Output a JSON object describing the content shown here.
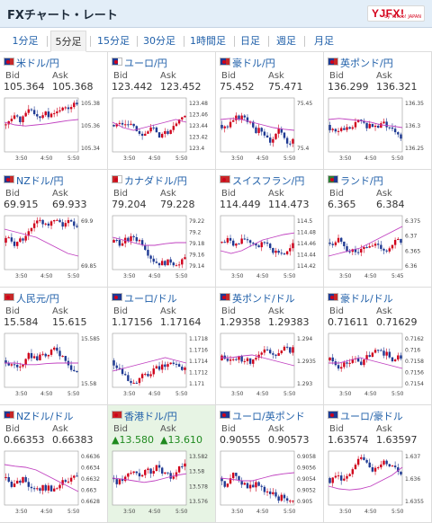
{
  "header": {
    "title": "FXチャート・レート",
    "logo_text": "YJFX!",
    "logo_sub": "by Yahoo! JAPAN"
  },
  "tabs": [
    {
      "label": "1分足",
      "active": false
    },
    {
      "label": "5分足",
      "active": true
    },
    {
      "label": "15分足",
      "active": false
    },
    {
      "label": "30分足",
      "active": false
    },
    {
      "label": "1時間足",
      "active": false
    },
    {
      "label": "日足",
      "active": false
    },
    {
      "label": "週足",
      "active": false
    },
    {
      "label": "月足",
      "active": false
    }
  ],
  "labels": {
    "bid": "Bid",
    "ask": "Ask"
  },
  "panels": [
    {
      "pair": "米ドル/円",
      "bid": "105.364",
      "ask": "105.368",
      "up": false,
      "highlight": false,
      "flag": [
        "#1f3a93",
        "#c62828"
      ],
      "y_ticks": [
        "105.38",
        "105.36",
        "105.34"
      ],
      "x_ticks": [
        "3:50",
        "4:50",
        "5:50"
      ],
      "ma": [
        0.55,
        0.5,
        0.48,
        0.5,
        0.52,
        0.55,
        0.58,
        0.6
      ],
      "seed": 1
    },
    {
      "pair": "ユーロ/円",
      "bid": "123.442",
      "ask": "123.452",
      "up": false,
      "highlight": false,
      "flag": [
        "#1f3a93",
        "#ffffff"
      ],
      "y_ticks": [
        "123.48",
        "123.46",
        "123.44",
        "123.42",
        "123.4"
      ],
      "x_ticks": [
        "3:50",
        "4:50",
        "5:50"
      ],
      "ma": [
        0.55,
        0.45,
        0.4,
        0.45,
        0.5,
        0.55,
        0.6,
        0.55
      ],
      "seed": 2
    },
    {
      "pair": "豪ドル/円",
      "bid": "75.452",
      "ask": "75.471",
      "up": false,
      "highlight": false,
      "flag": [
        "#1f3a93",
        "#c62828"
      ],
      "y_ticks": [
        "75.45",
        "75.4"
      ],
      "x_ticks": [
        "3:50",
        "4:50",
        "5:50"
      ],
      "ma": [
        0.6,
        0.62,
        0.6,
        0.55,
        0.5,
        0.45,
        0.42,
        0.4
      ],
      "seed": 3
    },
    {
      "pair": "英ポンド/円",
      "bid": "136.299",
      "ask": "136.321",
      "up": false,
      "highlight": false,
      "flag": [
        "#1f3a93",
        "#c62828"
      ],
      "y_ticks": [
        "136.35",
        "136.3",
        "136.25"
      ],
      "x_ticks": [
        "3:50",
        "4:50",
        "5:50"
      ],
      "ma": [
        0.6,
        0.62,
        0.6,
        0.58,
        0.55,
        0.5,
        0.48,
        0.45
      ],
      "seed": 4
    },
    {
      "pair": "NZドル/円",
      "bid": "69.915",
      "ask": "69.933",
      "up": false,
      "highlight": false,
      "flag": [
        "#1f3a93",
        "#c62828"
      ],
      "y_ticks": [
        "69.9",
        "69.85"
      ],
      "x_ticks": [
        "3:50",
        "4:50",
        "5:50"
      ],
      "ma": [
        0.75,
        0.7,
        0.65,
        0.6,
        0.5,
        0.4,
        0.3,
        0.25
      ],
      "seed": 5
    },
    {
      "pair": "カナダドル/円",
      "bid": "79.204",
      "ask": "79.228",
      "up": false,
      "highlight": false,
      "flag": [
        "#c62828",
        "#ffffff"
      ],
      "y_ticks": [
        "79.22",
        "79.2",
        "79.18",
        "79.16",
        "79.14"
      ],
      "x_ticks": [
        "3:50",
        "4:50",
        "5:50"
      ],
      "ma": [
        0.6,
        0.55,
        0.5,
        0.45,
        0.45,
        0.48,
        0.5,
        0.5
      ],
      "seed": 6
    },
    {
      "pair": "スイスフラン/円",
      "bid": "114.449",
      "ask": "114.473",
      "up": false,
      "highlight": false,
      "flag": [
        "#c62828",
        "#c62828"
      ],
      "y_ticks": [
        "114.5",
        "114.48",
        "114.46",
        "114.44",
        "114.42"
      ],
      "x_ticks": [
        "3:50",
        "4:50",
        "5:50"
      ],
      "ma": [
        0.35,
        0.3,
        0.35,
        0.45,
        0.55,
        0.6,
        0.65,
        0.68
      ],
      "seed": 7
    },
    {
      "pair": "ランド/円",
      "bid": "6.365",
      "ask": "6.384",
      "up": false,
      "highlight": false,
      "flag": [
        "#2e7d32",
        "#1f3a93"
      ],
      "y_ticks": [
        "6.375",
        "6.37",
        "6.365",
        "6.36"
      ],
      "x_ticks": [
        "3:50",
        "4:50",
        "5:45"
      ],
      "ma": [
        0.25,
        0.3,
        0.35,
        0.4,
        0.5,
        0.6,
        0.7,
        0.8
      ],
      "seed": 8
    },
    {
      "pair": "人民元/円",
      "bid": "15.584",
      "ask": "15.615",
      "up": false,
      "highlight": false,
      "flag": [
        "#c62828",
        "#c62828"
      ],
      "y_ticks": [
        "15.585",
        "15.58"
      ],
      "x_ticks": [
        "3:50",
        "4:50",
        "5:50"
      ],
      "ma": [
        0.45,
        0.45,
        0.42,
        0.42,
        0.44,
        0.45,
        0.45,
        0.45
      ],
      "seed": 9
    },
    {
      "pair": "ユーロ/ドル",
      "bid": "1.17156",
      "ask": "1.17164",
      "up": false,
      "highlight": false,
      "flag": [
        "#1f3a93",
        "#1f3a93"
      ],
      "y_ticks": [
        "1.1718",
        "1.1716",
        "1.1714",
        "1.1712",
        "1.171"
      ],
      "x_ticks": [
        "3:50",
        "4:50",
        "5:50"
      ],
      "ma": [
        0.3,
        0.35,
        0.4,
        0.45,
        0.5,
        0.55,
        0.5,
        0.45
      ],
      "seed": 10
    },
    {
      "pair": "英ポンド/ドル",
      "bid": "1.29358",
      "ask": "1.29383",
      "up": false,
      "highlight": false,
      "flag": [
        "#1f3a93",
        "#c62828"
      ],
      "y_ticks": [
        "1.294",
        "1.2935",
        "1.293"
      ],
      "x_ticks": [
        "3:50",
        "4:50",
        "5:50"
      ],
      "ma": [
        0.55,
        0.55,
        0.58,
        0.6,
        0.55,
        0.5,
        0.45,
        0.4
      ],
      "seed": 11
    },
    {
      "pair": "豪ドル/ドル",
      "bid": "0.71611",
      "ask": "0.71629",
      "up": false,
      "highlight": false,
      "flag": [
        "#1f3a93",
        "#c62828"
      ],
      "y_ticks": [
        "0.7162",
        "0.716",
        "0.7158",
        "0.7156",
        "0.7154"
      ],
      "x_ticks": [
        "3:50",
        "4:50",
        "5:50"
      ],
      "ma": [
        0.45,
        0.45,
        0.5,
        0.55,
        0.5,
        0.45,
        0.4,
        0.35
      ],
      "seed": 12
    },
    {
      "pair": "NZドル/ドル",
      "bid": "0.66353",
      "ask": "0.66383",
      "up": false,
      "highlight": false,
      "flag": [
        "#1f3a93",
        "#c62828"
      ],
      "y_ticks": [
        "0.6636",
        "0.6634",
        "0.6632",
        "0.663",
        "0.6628"
      ],
      "x_ticks": [
        "3:50",
        "4:50",
        "5:50"
      ],
      "ma": [
        0.75,
        0.72,
        0.7,
        0.65,
        0.55,
        0.45,
        0.35,
        0.25
      ],
      "seed": 13
    },
    {
      "pair": "香港ドル/円",
      "bid": "▲13.580",
      "ask": "▲13.610",
      "up": true,
      "highlight": true,
      "flag": [
        "#c62828",
        "#c62828"
      ],
      "y_ticks": [
        "13.582",
        "13.58",
        "13.578",
        "13.576"
      ],
      "x_ticks": [
        "3:50",
        "4:50",
        "5:50"
      ],
      "ma": [
        0.5,
        0.48,
        0.45,
        0.42,
        0.45,
        0.5,
        0.55,
        0.58
      ],
      "seed": 14
    },
    {
      "pair": "ユーロ/英ポンド",
      "bid": "0.90555",
      "ask": "0.90573",
      "up": false,
      "highlight": false,
      "flag": [
        "#1f3a93",
        "#1f3a93"
      ],
      "y_ticks": [
        "0.9058",
        "0.9056",
        "0.9054",
        "0.9052",
        "0.905"
      ],
      "x_ticks": [
        "3:50",
        "4:50",
        "5:50"
      ],
      "ma": [
        0.5,
        0.48,
        0.45,
        0.45,
        0.5,
        0.55,
        0.58,
        0.6
      ],
      "seed": 15
    },
    {
      "pair": "ユーロ/豪ドル",
      "bid": "1.63574",
      "ask": "1.63597",
      "up": false,
      "highlight": false,
      "flag": [
        "#1f3a93",
        "#1f3a93"
      ],
      "y_ticks": [
        "1.637",
        "1.636",
        "1.6355"
      ],
      "x_ticks": [
        "3:50",
        "4:50",
        "5:50"
      ],
      "ma": [
        0.35,
        0.3,
        0.28,
        0.3,
        0.35,
        0.45,
        0.55,
        0.7
      ],
      "seed": 16
    }
  ],
  "colors": {
    "up_candle": "#d0021b",
    "down_candle": "#1f3a93",
    "ma_line": "#c040c0",
    "link": "#1f5fa9"
  }
}
